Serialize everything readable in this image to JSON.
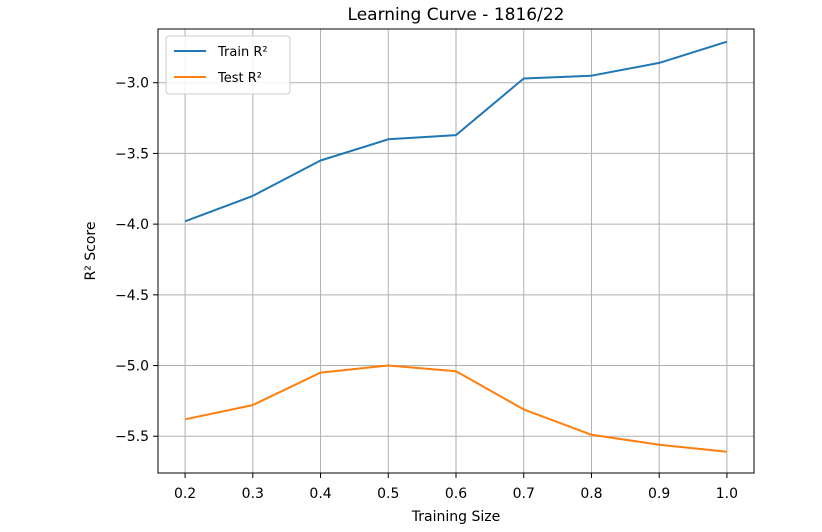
{
  "chart_data": {
    "type": "line",
    "title": "Learning Curve - 1816/22",
    "xlabel": "Training Size",
    "ylabel": "R² Score",
    "x": [
      0.2,
      0.3,
      0.4,
      0.5,
      0.6,
      0.7,
      0.8,
      0.9,
      1.0
    ],
    "x_tick_labels": [
      "0.2",
      "0.3",
      "0.4",
      "0.5",
      "0.6",
      "0.7",
      "0.8",
      "0.9",
      "1.0"
    ],
    "y_ticks": [
      -3.0,
      -3.5,
      -4.0,
      -4.5,
      -5.0,
      -5.5
    ],
    "y_tick_labels": [
      "−3.0",
      "−3.5",
      "−4.0",
      "−4.5",
      "−5.0",
      "−5.5"
    ],
    "xlim": [
      0.16,
      1.04
    ],
    "ylim": [
      -5.76,
      -2.62
    ],
    "grid": true,
    "legend_position": "top-left",
    "series": [
      {
        "name": "Train R²",
        "color": "#1f77b4",
        "values": [
          -3.98,
          -3.8,
          -3.55,
          -3.4,
          -3.37,
          -2.97,
          -2.95,
          -2.86,
          -2.71
        ]
      },
      {
        "name": "Test R²",
        "color": "#ff7f0e",
        "values": [
          -5.38,
          -5.28,
          -5.05,
          -5.0,
          -5.04,
          -5.31,
          -5.49,
          -5.56,
          -5.61
        ]
      }
    ]
  }
}
